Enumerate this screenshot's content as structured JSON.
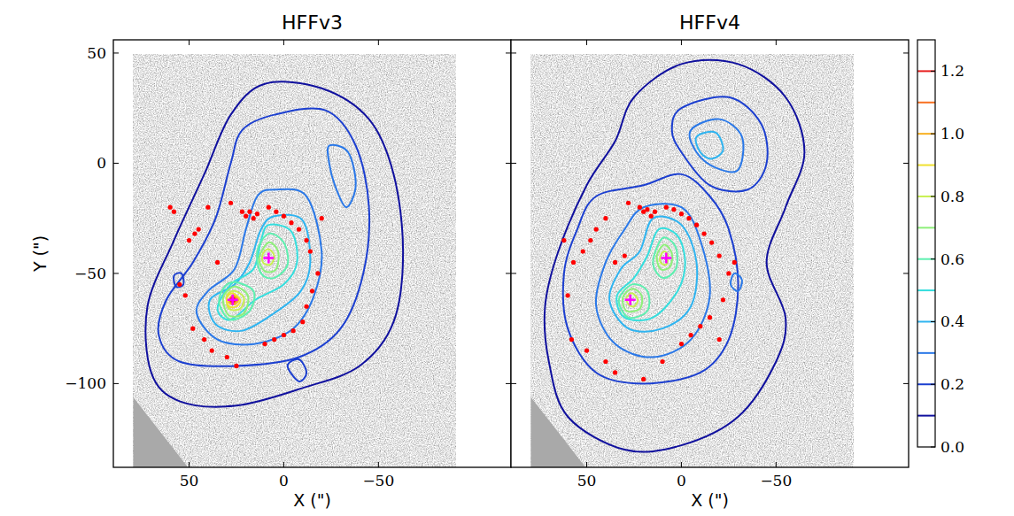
{
  "chart_data": [
    {
      "type": "contour",
      "title": "HFFv3",
      "xlabel": "X (\")",
      "ylabel": "Y (\")",
      "xlim": [
        90,
        -120
      ],
      "ylim": [
        56,
        -138
      ],
      "xticks": [
        50,
        0,
        {
          "value": -50,
          "label": "−50"
        }
      ],
      "yticks": [
        50,
        0,
        {
          "value": -50,
          "label": "−50"
        },
        {
          "value": -100,
          "label": "−100"
        }
      ],
      "series": [
        {
          "type": "contour",
          "level": 0.1,
          "x": [
            10,
            -20,
            -45,
            -58,
            -63,
            -58,
            -40,
            -10,
            25,
            55,
            70,
            72,
            58,
            42,
            28
          ],
          "y": [
            36,
            34,
            20,
            -5,
            -40,
            -72,
            -92,
            -102,
            -110,
            -108,
            -95,
            -65,
            -35,
            -5,
            22
          ]
        },
        {
          "type": "contour",
          "level": 0.2,
          "x": [
            5,
            -22,
            -38,
            -45,
            -42,
            -30,
            -8,
            25,
            55,
            66,
            62,
            48,
            36,
            28,
            22
          ],
          "y": [
            22,
            24,
            8,
            -20,
            -50,
            -75,
            -88,
            -92,
            -90,
            -78,
            -62,
            -45,
            -25,
            0,
            15
          ]
        },
        {
          "type": "contour",
          "level": 0.2,
          "x": [
            -2,
            -8,
            -12,
            -8
          ],
          "y": [
            -92,
            -89,
            -95,
            -99
          ]
        },
        {
          "type": "contour",
          "level": 0.2,
          "x": [
            58,
            54,
            53,
            57
          ],
          "y": [
            -51,
            -50,
            -55,
            -56
          ]
        },
        {
          "type": "contour",
          "level": 0.3,
          "x": [
            5,
            -12,
            -20,
            -16,
            -5,
            15,
            35,
            46,
            40,
            26,
            20,
            14
          ],
          "y": [
            -12,
            -15,
            -40,
            -60,
            -75,
            -82,
            -80,
            -68,
            -58,
            -48,
            -30,
            -15
          ]
        },
        {
          "type": "contour",
          "level": 0.3,
          "x": [
            -24,
            -34,
            -38,
            -33,
            -27,
            -24
          ],
          "y": [
            8,
            5,
            -10,
            -20,
            -10,
            0
          ]
        },
        {
          "type": "contour",
          "level": 0.4,
          "x": [
            5,
            -10,
            -14,
            -9,
            5,
            22,
            36,
            39,
            26,
            18,
            12
          ],
          "y": [
            -24,
            -26,
            -45,
            -58,
            -68,
            -76,
            -73,
            -62,
            -55,
            -45,
            -30
          ]
        },
        {
          "type": "contour",
          "level": 0.5,
          "x": [
            8,
            -4,
            -7,
            0,
            15,
            28,
            35,
            28,
            16,
            12
          ],
          "y": [
            -28,
            -31,
            -45,
            -55,
            -62,
            -71,
            -66,
            -55,
            -48,
            -35
          ]
        },
        {
          "type": "contour",
          "level": 0.6,
          "x": [
            8,
            0,
            -2,
            5,
            12,
            14
          ],
          "y": [
            -32,
            -36,
            -46,
            -52,
            -50,
            -40
          ]
        },
        {
          "type": "contour",
          "level": 0.6,
          "x": [
            26,
            16,
            18,
            28,
            34,
            32
          ],
          "y": [
            -54,
            -58,
            -67,
            -71,
            -64,
            -57
          ]
        },
        {
          "type": "contour",
          "level": 0.7,
          "x": [
            8,
            3,
            4,
            10,
            13
          ],
          "y": [
            -36,
            -40,
            -48,
            -49,
            -43
          ]
        },
        {
          "type": "contour",
          "level": 0.7,
          "x": [
            26,
            19,
            21,
            29,
            32
          ],
          "y": [
            -56,
            -60,
            -68,
            -69,
            -61
          ]
        },
        {
          "type": "contour",
          "level": 0.8,
          "x": [
            8,
            5,
            7,
            11,
            11
          ],
          "y": [
            -39,
            -42,
            -46,
            -45,
            -41
          ]
        },
        {
          "type": "contour",
          "level": 0.8,
          "x": [
            26,
            21,
            23,
            29,
            30
          ],
          "y": [
            -58,
            -61,
            -66,
            -66,
            -60
          ]
        },
        {
          "type": "contour",
          "level": 0.9,
          "x": [
            27,
            23,
            25,
            29,
            30
          ],
          "y": [
            -59,
            -62,
            -65,
            -65,
            -61
          ]
        },
        {
          "type": "contour",
          "level": 1.0,
          "x": [
            27,
            24,
            26,
            29
          ],
          "y": [
            -60,
            -62,
            -64,
            -63
          ]
        },
        {
          "type": "contour",
          "level": 1.1,
          "x": [
            27,
            25,
            27,
            28.5
          ],
          "y": [
            -60.5,
            -62,
            -63.5,
            -62
          ]
        },
        {
          "type": "contour",
          "level": 1.2,
          "x": [
            27,
            25.8,
            27,
            28
          ],
          "y": [
            -61,
            -62,
            -63,
            -62
          ]
        },
        {
          "type": "scatter",
          "color": "#ff0000",
          "marker": "circle",
          "x": [
            22,
            20,
            18,
            16,
            14,
            8,
            4,
            0,
            -4,
            -8,
            -12,
            -14,
            45,
            47,
            50,
            55,
            52,
            48,
            42,
            38,
            10,
            5,
            0,
            -5,
            -10,
            -12,
            -15,
            30,
            25,
            -18,
            35,
            -20,
            40,
            28,
            60,
            58
          ],
          "y": [
            -22,
            -24,
            -22,
            -25,
            -23,
            -20,
            -22,
            -24,
            -27,
            -30,
            -35,
            -40,
            -30,
            -32,
            -35,
            -55,
            -60,
            -75,
            -80,
            -85,
            -82,
            -80,
            -78,
            -76,
            -72,
            -65,
            -58,
            -88,
            -92,
            -50,
            -45,
            -25,
            -20,
            -18,
            -20,
            -22
          ]
        },
        {
          "type": "scatter",
          "color": "#ff00ff",
          "marker": "plus",
          "x": [
            8,
            27
          ],
          "y": [
            -43,
            -62
          ]
        }
      ]
    },
    {
      "type": "contour",
      "title": "HFFv4",
      "xlabel": "X (\")",
      "tick_labels": "x",
      "xlim": [
        90,
        -120
      ],
      "ylim": [
        56,
        -138
      ],
      "xticks": [
        50,
        0,
        {
          "value": -50,
          "label": "−50"
        }
      ],
      "yticks": [
        50,
        0,
        {
          "value": -50,
          "label": "−50"
        },
        {
          "value": -100,
          "label": "−100"
        }
      ],
      "series": [
        {
          "type": "contour",
          "level": 0.1,
          "x": [
            72,
            70,
            60,
            30,
            0,
            -30,
            -50,
            -55,
            -45,
            -55,
            -65,
            -55,
            -30,
            0,
            25,
            35,
            50,
            65
          ],
          "y": [
            -65,
            -90,
            -115,
            -130,
            -128,
            -115,
            -90,
            -70,
            -45,
            -20,
            5,
            30,
            45,
            45,
            30,
            10,
            -10,
            -40
          ]
        },
        {
          "type": "contour",
          "level": 0.2,
          "x": [
            45,
            20,
            0,
            -15,
            -25,
            -30,
            -25,
            -10,
            20,
            45,
            60,
            62,
            55
          ],
          "y": [
            -15,
            -10,
            -5,
            -15,
            -30,
            -55,
            -80,
            -95,
            -100,
            -95,
            -75,
            -50,
            -30
          ]
        },
        {
          "type": "contour",
          "level": 0.2,
          "x": [
            0,
            -25,
            -42,
            -45,
            -35,
            -15,
            0,
            5
          ],
          "y": [
            25,
            30,
            18,
            0,
            -12,
            -10,
            5,
            15
          ]
        },
        {
          "type": "contour",
          "level": 0.3,
          "x": [
            -5,
            -20,
            -32,
            -30,
            -18,
            -8
          ],
          "y": [
            15,
            20,
            12,
            -3,
            -2,
            5
          ]
        },
        {
          "type": "contour",
          "level": 0.3,
          "x": [
            20,
            0,
            -10,
            -15,
            -5,
            15,
            35,
            45,
            40,
            30
          ],
          "y": [
            -20,
            -20,
            -35,
            -60,
            -80,
            -88,
            -82,
            -65,
            -45,
            -30
          ]
        },
        {
          "type": "contour",
          "level": 0.3,
          "x": [
            -28,
            -32,
            -30,
            -26
          ],
          "y": [
            -50,
            -53,
            -58,
            -55
          ]
        },
        {
          "type": "contour",
          "level": 0.4,
          "x": [
            -8,
            -18,
            -22,
            -16,
            -10
          ],
          "y": [
            12,
            14,
            6,
            2,
            5
          ]
        },
        {
          "type": "contour",
          "level": 0.4,
          "x": [
            15,
            0,
            -8,
            -5,
            10,
            28,
            38,
            32,
            22
          ],
          "y": [
            -25,
            -28,
            -45,
            -65,
            -75,
            -75,
            -62,
            -48,
            -40
          ]
        },
        {
          "type": "contour",
          "level": 0.5,
          "x": [
            12,
            2,
            -2,
            2,
            15,
            30,
            34,
            25,
            18
          ],
          "y": [
            -30,
            -33,
            -45,
            -58,
            -70,
            -70,
            -60,
            -52,
            -42
          ]
        },
        {
          "type": "contour",
          "level": 0.6,
          "x": [
            10,
            3,
            3,
            10,
            15
          ],
          "y": [
            -34,
            -38,
            -48,
            -52,
            -45
          ]
        },
        {
          "type": "contour",
          "level": 0.6,
          "x": [
            26,
            18,
            18,
            28,
            33
          ],
          "y": [
            -55,
            -58,
            -67,
            -70,
            -62
          ]
        },
        {
          "type": "contour",
          "level": 0.7,
          "x": [
            9,
            5,
            6,
            11,
            13
          ],
          "y": [
            -37,
            -41,
            -47,
            -48,
            -42
          ]
        },
        {
          "type": "contour",
          "level": 0.7,
          "x": [
            26,
            21,
            22,
            29,
            31
          ],
          "y": [
            -57,
            -60,
            -66,
            -67,
            -61
          ]
        },
        {
          "type": "contour",
          "level": 0.8,
          "x": [
            9,
            7,
            8,
            11,
            11
          ],
          "y": [
            -40,
            -42,
            -46,
            -45,
            -42
          ]
        },
        {
          "type": "contour",
          "level": 0.8,
          "x": [
            26,
            23,
            25,
            28,
            29
          ],
          "y": [
            -59,
            -62,
            -65,
            -64,
            -61
          ]
        },
        {
          "type": "scatter",
          "color": "#ff0000",
          "marker": "circle",
          "x": [
            22,
            20,
            18,
            16,
            14,
            8,
            4,
            0,
            -4,
            -8,
            -12,
            -16,
            -20,
            45,
            48,
            52,
            57,
            60,
            58,
            50,
            40,
            35,
            20,
            10,
            0,
            -5,
            -10,
            -15,
            -20,
            -22,
            -25,
            -28,
            30,
            35,
            40,
            62,
            28
          ],
          "y": [
            -20,
            -22,
            -21,
            -24,
            -22,
            -20,
            -21,
            -23,
            -25,
            -28,
            -32,
            -36,
            -42,
            -30,
            -35,
            -40,
            -45,
            -60,
            -80,
            -85,
            -90,
            -95,
            -98,
            -90,
            -82,
            -78,
            -74,
            -70,
            -80,
            -62,
            -50,
            -45,
            -42,
            -45,
            -25,
            -35,
            -18
          ]
        },
        {
          "type": "scatter",
          "color": "#ff00ff",
          "marker": "plus",
          "x": [
            8,
            27
          ],
          "y": [
            -43,
            -62
          ]
        }
      ]
    },
    {
      "type": "colorbar",
      "ylim": [
        0,
        1.3
      ],
      "yticks": [
        {
          "value": 0,
          "label": "0.0"
        },
        0.2,
        0.4,
        0.6,
        0.8,
        {
          "value": 1,
          "label": "1.0"
        },
        1.2
      ],
      "levels": [
        0.1,
        0.2,
        0.3,
        0.4,
        0.5,
        0.6,
        0.7,
        0.8,
        0.9,
        1.0,
        1.1,
        1.2
      ],
      "colors": [
        "#10109e",
        "#1c3fd0",
        "#2a78e8",
        "#2fb4f0",
        "#35dede",
        "#5ef0b0",
        "#8ef07a",
        "#c8f050",
        "#f0e030",
        "#f8b020",
        "#f87020",
        "#e82020"
      ]
    }
  ]
}
